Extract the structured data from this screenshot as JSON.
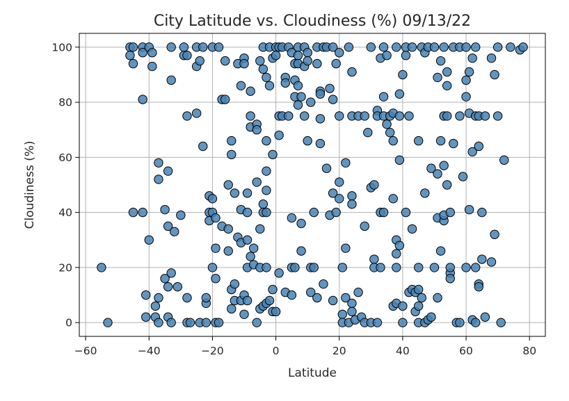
{
  "chart_data": {
    "type": "scatter",
    "title": "City Latitude vs. Cloudiness (%) 09/13/22",
    "xlabel": "Latitude",
    "ylabel": "Cloudiness (%)",
    "xlim": [
      -62,
      85
    ],
    "ylim": [
      -5,
      105
    ],
    "xticks": [
      -60,
      -40,
      -20,
      0,
      20,
      40,
      60,
      80
    ],
    "yticks": [
      0,
      20,
      40,
      60,
      80,
      100
    ],
    "grid": true,
    "legend": "none",
    "marker_color": "#4682b4",
    "marker_edge_color": "#000000",
    "points": [
      [
        -55,
        20
      ],
      [
        -53,
        0
      ],
      [
        -46,
        100
      ],
      [
        -46,
        97
      ],
      [
        -45,
        100
      ],
      [
        -45,
        94
      ],
      [
        -45,
        40
      ],
      [
        -42,
        100
      ],
      [
        -42,
        98
      ],
      [
        -42,
        81
      ],
      [
        -42,
        40
      ],
      [
        -41,
        10
      ],
      [
        -41,
        2
      ],
      [
        -40,
        30
      ],
      [
        -40,
        100
      ],
      [
        -39,
        98
      ],
      [
        -39,
        93
      ],
      [
        -38,
        6
      ],
      [
        -38,
        2
      ],
      [
        -37,
        52
      ],
      [
        -37,
        58
      ],
      [
        -37,
        9
      ],
      [
        -37,
        0
      ],
      [
        -35,
        16
      ],
      [
        -35,
        41
      ],
      [
        -34,
        35
      ],
      [
        -34,
        13
      ],
      [
        -34,
        55
      ],
      [
        -34,
        2
      ],
      [
        -33,
        88
      ],
      [
        -33,
        100
      ],
      [
        -33,
        18
      ],
      [
        -33,
        0
      ],
      [
        -32,
        33
      ],
      [
        -31,
        13
      ],
      [
        -30,
        39
      ],
      [
        -29,
        100
      ],
      [
        -29,
        97
      ],
      [
        -28,
        97
      ],
      [
        -28,
        75
      ],
      [
        -28,
        9
      ],
      [
        -28,
        0
      ],
      [
        -27,
        0
      ],
      [
        -25,
        100
      ],
      [
        -25,
        93
      ],
      [
        -25,
        76
      ],
      [
        -24,
        95
      ],
      [
        -24,
        0
      ],
      [
        -23,
        64
      ],
      [
        -23,
        100
      ],
      [
        -22,
        7
      ],
      [
        -22,
        9
      ],
      [
        -22,
        0
      ],
      [
        -21,
        46
      ],
      [
        -21,
        40
      ],
      [
        -21,
        37
      ],
      [
        -20,
        45
      ],
      [
        -20,
        100
      ],
      [
        -20,
        40
      ],
      [
        -20,
        20
      ],
      [
        -19,
        27
      ],
      [
        -19,
        16
      ],
      [
        -19,
        38
      ],
      [
        -19,
        0
      ],
      [
        -18,
        0
      ],
      [
        -18,
        100
      ],
      [
        -17,
        81
      ],
      [
        -17,
        35
      ],
      [
        -16,
        81
      ],
      [
        -16,
        95
      ],
      [
        -15,
        50
      ],
      [
        -15,
        34
      ],
      [
        -15,
        26
      ],
      [
        -14,
        66
      ],
      [
        -14,
        61
      ],
      [
        -14,
        12
      ],
      [
        -14,
        5
      ],
      [
        -13,
        47
      ],
      [
        -13,
        14
      ],
      [
        -13,
        8
      ],
      [
        -12,
        94
      ],
      [
        -12,
        31
      ],
      [
        -11,
        86
      ],
      [
        -11,
        41
      ],
      [
        -11,
        29
      ],
      [
        -11,
        8
      ],
      [
        -10,
        96
      ],
      [
        -10,
        94
      ],
      [
        -10,
        10
      ],
      [
        -10,
        3
      ],
      [
        -9,
        47
      ],
      [
        -9,
        40
      ],
      [
        -9,
        30
      ],
      [
        -9,
        20
      ],
      [
        -9,
        8
      ],
      [
        -8,
        75
      ],
      [
        -8,
        71
      ],
      [
        -8,
        84
      ],
      [
        -8,
        24
      ],
      [
        -7,
        27
      ],
      [
        -7,
        21
      ],
      [
        -6,
        72
      ],
      [
        -6,
        70
      ],
      [
        -6,
        51
      ],
      [
        -6,
        0
      ],
      [
        -5,
        95
      ],
      [
        -5,
        34
      ],
      [
        -5,
        20
      ],
      [
        -5,
        5
      ],
      [
        -4,
        100
      ],
      [
        -4,
        92
      ],
      [
        -4,
        43
      ],
      [
        -4,
        40
      ],
      [
        -4,
        6
      ],
      [
        -3,
        89
      ],
      [
        -3,
        66
      ],
      [
        -3,
        55
      ],
      [
        -3,
        48
      ],
      [
        -3,
        40
      ],
      [
        -3,
        20
      ],
      [
        -3,
        7
      ],
      [
        -2,
        100
      ],
      [
        -2,
        86
      ],
      [
        -2,
        8
      ],
      [
        -1,
        96
      ],
      [
        -1,
        61
      ],
      [
        -1,
        12
      ],
      [
        -1,
        4
      ],
      [
        0,
        100
      ],
      [
        0,
        97
      ],
      [
        0,
        4
      ],
      [
        1,
        100
      ],
      [
        1,
        75
      ],
      [
        1,
        68
      ],
      [
        1,
        18
      ],
      [
        2,
        100
      ],
      [
        2,
        75
      ],
      [
        3,
        89
      ],
      [
        3,
        87
      ],
      [
        3,
        11
      ],
      [
        4,
        100
      ],
      [
        4,
        75
      ],
      [
        5,
        98
      ],
      [
        5,
        20
      ],
      [
        5,
        38
      ],
      [
        5,
        10
      ],
      [
        6,
        94
      ],
      [
        6,
        88
      ],
      [
        6,
        82
      ],
      [
        6,
        20
      ],
      [
        7,
        100
      ],
      [
        7,
        97
      ],
      [
        7,
        86
      ],
      [
        7,
        79
      ],
      [
        7,
        94
      ],
      [
        8,
        82
      ],
      [
        8,
        36
      ],
      [
        8,
        26
      ],
      [
        9,
        100
      ],
      [
        9,
        93
      ],
      [
        9,
        75
      ],
      [
        10,
        98
      ],
      [
        10,
        95
      ],
      [
        10,
        66
      ],
      [
        11,
        80
      ],
      [
        11,
        20
      ],
      [
        11,
        11
      ],
      [
        12,
        40
      ],
      [
        12,
        20
      ],
      [
        13,
        100
      ],
      [
        13,
        94
      ],
      [
        13,
        9
      ],
      [
        14,
        84
      ],
      [
        14,
        83
      ],
      [
        14,
        74
      ],
      [
        14,
        65
      ],
      [
        15,
        100
      ],
      [
        15,
        14
      ],
      [
        16,
        100
      ],
      [
        16,
        56
      ],
      [
        17,
        39
      ],
      [
        17,
        85
      ],
      [
        18,
        81
      ],
      [
        18,
        100
      ],
      [
        18,
        47
      ],
      [
        18,
        8
      ],
      [
        19,
        94
      ],
      [
        19,
        40
      ],
      [
        20,
        98
      ],
      [
        20,
        51
      ],
      [
        20,
        75
      ],
      [
        20,
        45
      ],
      [
        21,
        20
      ],
      [
        21,
        3
      ],
      [
        21,
        0
      ],
      [
        22,
        58
      ],
      [
        22,
        27
      ],
      [
        22,
        9
      ],
      [
        23,
        100
      ],
      [
        23,
        0
      ],
      [
        24,
        91
      ],
      [
        24,
        75
      ],
      [
        24,
        46
      ],
      [
        24,
        43
      ],
      [
        24,
        7
      ],
      [
        24,
        4
      ],
      [
        25,
        1
      ],
      [
        26,
        75
      ],
      [
        26,
        11
      ],
      [
        27,
        2
      ],
      [
        28,
        75
      ],
      [
        28,
        35
      ],
      [
        28,
        0
      ],
      [
        29,
        69
      ],
      [
        30,
        100
      ],
      [
        30,
        49
      ],
      [
        30,
        0
      ],
      [
        31,
        50
      ],
      [
        31,
        23
      ],
      [
        31,
        20
      ],
      [
        32,
        77
      ],
      [
        32,
        75
      ],
      [
        32,
        0
      ],
      [
        33,
        40
      ],
      [
        33,
        96
      ],
      [
        33,
        20
      ],
      [
        34,
        100
      ],
      [
        34,
        82
      ],
      [
        34,
        75
      ],
      [
        34,
        40
      ],
      [
        35,
        97
      ],
      [
        35,
        72
      ],
      [
        36,
        69
      ],
      [
        36,
        75
      ],
      [
        37,
        66
      ],
      [
        37,
        45
      ],
      [
        37,
        76
      ],
      [
        37,
        6
      ],
      [
        38,
        100
      ],
      [
        38,
        30
      ],
      [
        38,
        25
      ],
      [
        38,
        20
      ],
      [
        38,
        7
      ],
      [
        39,
        59
      ],
      [
        39,
        83
      ],
      [
        39,
        28
      ],
      [
        39,
        75
      ],
      [
        40,
        90
      ],
      [
        40,
        6
      ],
      [
        40,
        0
      ],
      [
        41,
        97
      ],
      [
        41,
        100
      ],
      [
        41,
        40
      ],
      [
        42,
        75
      ],
      [
        42,
        11
      ],
      [
        43,
        100
      ],
      [
        43,
        34
      ],
      [
        43,
        12
      ],
      [
        44,
        4
      ],
      [
        44,
        11
      ],
      [
        45,
        12
      ],
      [
        45,
        66
      ],
      [
        45,
        20
      ],
      [
        45,
        6
      ],
      [
        45,
        0
      ],
      [
        46,
        100
      ],
      [
        46,
        9
      ],
      [
        47,
        98
      ],
      [
        47,
        47
      ],
      [
        47,
        0
      ],
      [
        48,
        100
      ],
      [
        48,
        1
      ],
      [
        49,
        56
      ],
      [
        49,
        2
      ],
      [
        50,
        100
      ],
      [
        50,
        20
      ],
      [
        51,
        54
      ],
      [
        51,
        89
      ],
      [
        51,
        38
      ],
      [
        51,
        9
      ],
      [
        52,
        66
      ],
      [
        52,
        95
      ],
      [
        52,
        26
      ],
      [
        53,
        100
      ],
      [
        53,
        37
      ],
      [
        53,
        57
      ],
      [
        53,
        39
      ],
      [
        53,
        75
      ],
      [
        54,
        86
      ],
      [
        54,
        91
      ],
      [
        54,
        50
      ],
      [
        54,
        75
      ],
      [
        55,
        40
      ],
      [
        55,
        18
      ],
      [
        55,
        20
      ],
      [
        55,
        16
      ],
      [
        56,
        65
      ],
      [
        56,
        100
      ],
      [
        57,
        0
      ],
      [
        58,
        100
      ],
      [
        58,
        75
      ],
      [
        58,
        0
      ],
      [
        59,
        53
      ],
      [
        60,
        88
      ],
      [
        60,
        82
      ],
      [
        60,
        100
      ],
      [
        60,
        20
      ],
      [
        61,
        76
      ],
      [
        61,
        41
      ],
      [
        61,
        91
      ],
      [
        62,
        62
      ],
      [
        62,
        96
      ],
      [
        62,
        1
      ],
      [
        63,
        100
      ],
      [
        63,
        75
      ],
      [
        63,
        20
      ],
      [
        63,
        0
      ],
      [
        64,
        64
      ],
      [
        64,
        14
      ],
      [
        64,
        13
      ],
      [
        64,
        75
      ],
      [
        65,
        40
      ],
      [
        65,
        23
      ],
      [
        66,
        75
      ],
      [
        66,
        2
      ],
      [
        68,
        96
      ],
      [
        68,
        22
      ],
      [
        69,
        32
      ],
      [
        69,
        90
      ],
      [
        70,
        75
      ],
      [
        70,
        100
      ],
      [
        71,
        0
      ],
      [
        72,
        59
      ],
      [
        74,
        100
      ],
      [
        77,
        99
      ],
      [
        78,
        100
      ]
    ]
  }
}
